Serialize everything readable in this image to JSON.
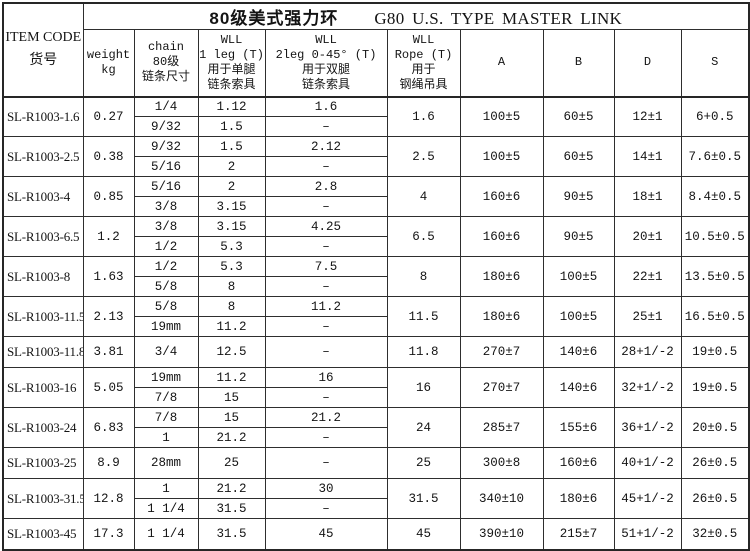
{
  "title": {
    "cjk": "80级美式强力环",
    "latin": "G80 U.S. TYPE MASTER LINK"
  },
  "header": {
    "item_code": {
      "line1": "ITEM CODE",
      "line2": "货号"
    },
    "weight": {
      "line1": "weight",
      "line2": "kg"
    },
    "chain": {
      "line1": "chain",
      "line2": "80级",
      "line3": "链条尺寸"
    },
    "wll_1leg": {
      "line1": "WLL",
      "line2": "1 leg (T)",
      "line3": "用于单腿",
      "line4": "链条索具"
    },
    "wll_2leg": {
      "line1": "WLL",
      "line2": "2leg 0-45° (T)",
      "line3": "用于双腿",
      "line4": "链条索具"
    },
    "wll_rope": {
      "line1": "WLL",
      "line2": "Rope (T)",
      "line3": "用于",
      "line4": "钢绳吊具"
    },
    "a": "A",
    "b": "B",
    "d": "D",
    "s": "S"
  },
  "rows": [
    {
      "code": "SL-R1003-1.6",
      "weight": "0.27",
      "subrows": [
        [
          "1/4",
          "1.12",
          "1.6"
        ],
        [
          "9/32",
          "1.5",
          "–"
        ]
      ],
      "rope": "1.6",
      "a": "100±5",
      "b": "60±5",
      "d": "12±1",
      "s": "6+0.5"
    },
    {
      "code": "SL-R1003-2.5",
      "weight": "0.38",
      "subrows": [
        [
          "9/32",
          "1.5",
          "2.12"
        ],
        [
          "5/16",
          "2",
          "–"
        ]
      ],
      "rope": "2.5",
      "a": "100±5",
      "b": "60±5",
      "d": "14±1",
      "s": "7.6±0.5"
    },
    {
      "code": "SL-R1003-4",
      "weight": "0.85",
      "subrows": [
        [
          "5/16",
          "2",
          "2.8"
        ],
        [
          "3/8",
          "3.15",
          "–"
        ]
      ],
      "rope": "4",
      "a": "160±6",
      "b": "90±5",
      "d": "18±1",
      "s": "8.4±0.5"
    },
    {
      "code": "SL-R1003-6.5",
      "weight": "1.2",
      "subrows": [
        [
          "3/8",
          "3.15",
          "4.25"
        ],
        [
          "1/2",
          "5.3",
          "–"
        ]
      ],
      "rope": "6.5",
      "a": "160±6",
      "b": "90±5",
      "d": "20±1",
      "s": "10.5±0.5"
    },
    {
      "code": "SL-R1003-8",
      "weight": "1.63",
      "subrows": [
        [
          "1/2",
          "5.3",
          "7.5"
        ],
        [
          "5/8",
          "8",
          "–"
        ]
      ],
      "rope": "8",
      "a": "180±6",
      "b": "100±5",
      "d": "22±1",
      "s": "13.5±0.5"
    },
    {
      "code": "SL-R1003-11.5",
      "weight": "2.13",
      "subrows": [
        [
          "5/8",
          "8",
          "11.2"
        ],
        [
          "19mm",
          "11.2",
          "–"
        ]
      ],
      "rope": "11.5",
      "a": "180±6",
      "b": "100±5",
      "d": "25±1",
      "s": "16.5±0.5"
    },
    {
      "code": "SL-R1003-11.8",
      "weight": "3.81",
      "subrows": [
        [
          "3/4",
          "12.5",
          "–"
        ]
      ],
      "rope": "11.8",
      "a": "270±7",
      "b": "140±6",
      "d": "28+1/-2",
      "s": "19±0.5"
    },
    {
      "code": "SL-R1003-16",
      "weight": "5.05",
      "subrows": [
        [
          "19mm",
          "11.2",
          "16"
        ],
        [
          "7/8",
          "15",
          "–"
        ]
      ],
      "rope": "16",
      "a": "270±7",
      "b": "140±6",
      "d": "32+1/-2",
      "s": "19±0.5"
    },
    {
      "code": "SL-R1003-24",
      "weight": "6.83",
      "subrows": [
        [
          "7/8",
          "15",
          "21.2"
        ],
        [
          "1",
          "21.2",
          "–"
        ]
      ],
      "rope": "24",
      "a": "285±7",
      "b": "155±6",
      "d": "36+1/-2",
      "s": "20±0.5"
    },
    {
      "code": "SL-R1003-25",
      "weight": "8.9",
      "subrows": [
        [
          "28mm",
          "25",
          "–"
        ]
      ],
      "rope": "25",
      "a": "300±8",
      "b": "160±6",
      "d": "40+1/-2",
      "s": "26±0.5"
    },
    {
      "code": "SL-R1003-31.5",
      "weight": "12.8",
      "subrows": [
        [
          "1",
          "21.2",
          "30"
        ],
        [
          "1 1/4",
          "31.5",
          "–"
        ]
      ],
      "rope": "31.5",
      "a": "340±10",
      "b": "180±6",
      "d": "45+1/-2",
      "s": "26±0.5"
    },
    {
      "code": "SL-R1003-45",
      "weight": "17.3",
      "subrows": [
        [
          "1 1/4",
          "31.5",
          "45"
        ]
      ],
      "rope": "45",
      "a": "390±10",
      "b": "215±7",
      "d": "51+1/-2",
      "s": "32±0.5"
    }
  ]
}
